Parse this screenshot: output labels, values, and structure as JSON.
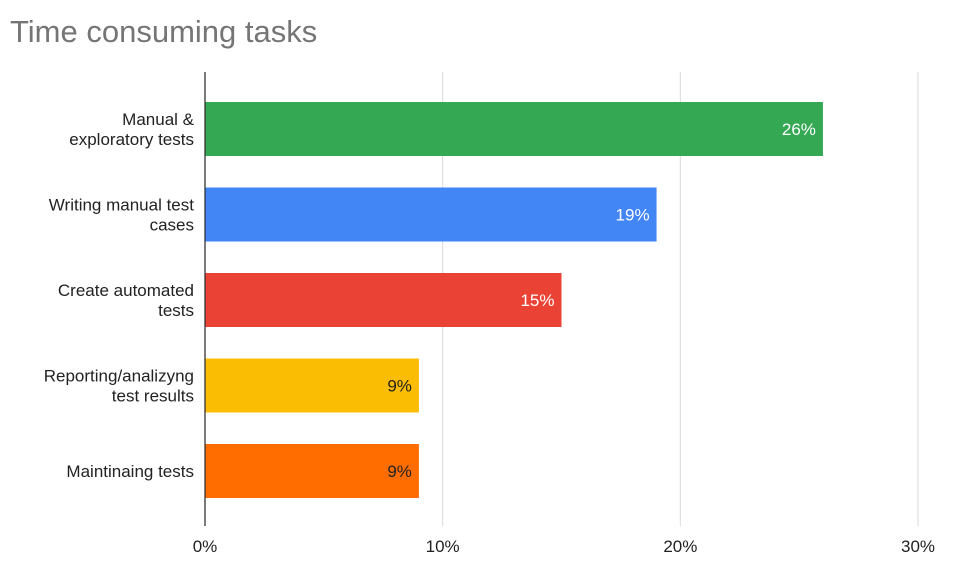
{
  "chart_data": {
    "type": "bar",
    "orientation": "horizontal",
    "title": "Time consuming tasks",
    "categories": [
      [
        "Manual &",
        "exploratory tests"
      ],
      [
        "Writing manual test",
        "cases"
      ],
      [
        "Create automated",
        "tests"
      ],
      [
        "Reporting/analizyng",
        "test results"
      ],
      [
        "Maintinaing tests"
      ]
    ],
    "values": [
      26,
      19,
      15,
      9,
      9
    ],
    "data_labels": [
      "26%",
      "19%",
      "15%",
      "9%",
      "9%"
    ],
    "colors": [
      "#34a853",
      "#4285f4",
      "#ea4335",
      "#fbbc04",
      "#ff6d01"
    ],
    "label_colors": [
      "#ffffff",
      "#ffffff",
      "#ffffff",
      "#222222",
      "#222222"
    ],
    "xlim": [
      0,
      30
    ],
    "xticks": [
      0,
      10,
      20,
      30
    ],
    "xtick_labels": [
      "0%",
      "10%",
      "20%",
      "30%"
    ],
    "grid": true,
    "legend": "none"
  }
}
